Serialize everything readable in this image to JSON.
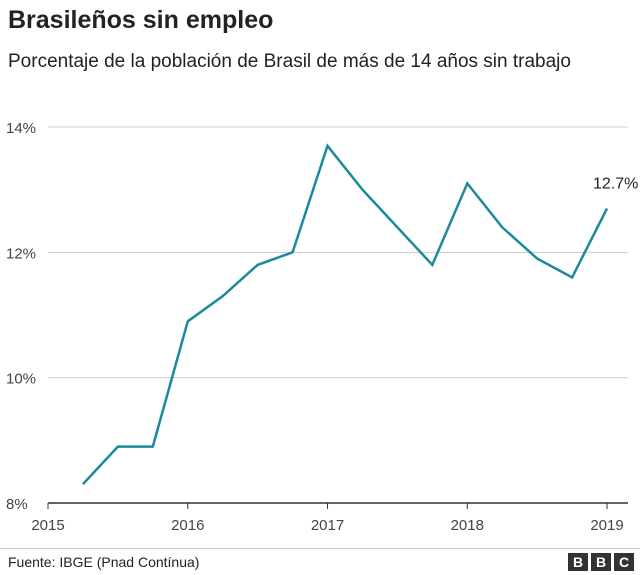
{
  "chart_data": {
    "type": "line",
    "title": "Brasileños sin empleo",
    "subtitle": "Porcentaje de la población de Brasil de más de 14 años sin trabajo",
    "xlabel": "",
    "ylabel": "",
    "ylim": [
      8,
      14
    ],
    "yticks": [
      8,
      10,
      12,
      14
    ],
    "ytick_labels": [
      "8%",
      "10%",
      "12%",
      "14%"
    ],
    "xlim": [
      2015,
      2019.15
    ],
    "xticks": [
      2015,
      2016,
      2017,
      2018,
      2019
    ],
    "xtick_labels": [
      "2015",
      "2016",
      "2017",
      "2018",
      "2019"
    ],
    "grid": "horizontal",
    "line_color": "#1b8a9a",
    "series": [
      {
        "x": [
          2015.25,
          2015.5,
          2015.75,
          2016.0,
          2016.25,
          2016.5,
          2016.75,
          2017.0,
          2017.25,
          2017.5,
          2017.75,
          2018.0,
          2018.25,
          2018.5,
          2018.75,
          2019.0
        ],
        "values": [
          8.3,
          8.9,
          8.9,
          10.9,
          11.3,
          11.8,
          12.0,
          13.7,
          13.0,
          12.4,
          11.8,
          13.1,
          12.4,
          11.9,
          11.6,
          12.7
        ]
      }
    ],
    "annotations": [
      {
        "text": "12.7%",
        "x": 2019.0,
        "y": 12.7
      }
    ]
  },
  "footer": {
    "source": "Fuente: IBGE (Pnad Contínua)",
    "logo_letters": [
      "B",
      "B",
      "C"
    ]
  }
}
